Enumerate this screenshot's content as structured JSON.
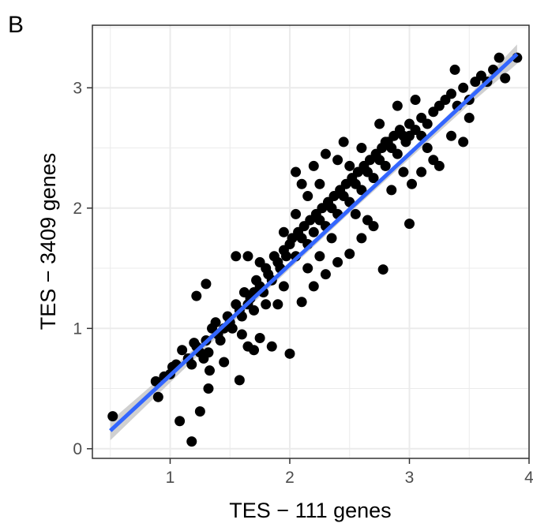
{
  "panel_label": "B",
  "chart_data": {
    "type": "scatter",
    "xlabel": "TES − 111 genes",
    "ylabel": "TES − 3409 genes",
    "xlim": [
      0.35,
      4.0
    ],
    "ylim": [
      -0.08,
      3.52
    ],
    "x_ticks": [
      1,
      2,
      3,
      4
    ],
    "y_ticks": [
      0,
      1,
      2,
      3
    ],
    "x_tick_labels": [
      "1",
      "2",
      "3",
      "4"
    ],
    "y_tick_labels": [
      "0",
      "1",
      "2",
      "3"
    ],
    "grid": true,
    "legend": "none",
    "colors": {
      "points": "#000000",
      "fit_line": "#3366ff",
      "confidence_band": "#c8c8c8",
      "grid": "#ebebeb",
      "frame": "#333333"
    },
    "fit_line": {
      "x": [
        0.5,
        3.9
      ],
      "y": [
        0.15,
        3.28
      ]
    },
    "confidence_band": {
      "x": [
        0.5,
        1.5,
        2.5,
        3.5,
        3.9
      ],
      "lower": [
        0.07,
        1.03,
        1.96,
        2.86,
        3.2
      ],
      "upper": [
        0.23,
        1.09,
        2.0,
        2.94,
        3.36
      ]
    },
    "points": [
      [
        0.52,
        0.27
      ],
      [
        0.88,
        0.56
      ],
      [
        0.9,
        0.43
      ],
      [
        0.95,
        0.6
      ],
      [
        1.0,
        0.62
      ],
      [
        1.02,
        0.68
      ],
      [
        1.05,
        0.7
      ],
      [
        1.1,
        0.82
      ],
      [
        1.15,
        0.75
      ],
      [
        1.18,
        0.7
      ],
      [
        1.2,
        0.88
      ],
      [
        1.22,
        0.85
      ],
      [
        1.25,
        0.8
      ],
      [
        1.28,
        0.75
      ],
      [
        1.3,
        0.9
      ],
      [
        1.32,
        0.8
      ],
      [
        1.33,
        0.65
      ],
      [
        1.35,
        1.0
      ],
      [
        1.38,
        1.05
      ],
      [
        1.4,
        0.95
      ],
      [
        1.42,
        0.9
      ],
      [
        1.45,
        1.0
      ],
      [
        1.48,
        1.1
      ],
      [
        1.5,
        1.05
      ],
      [
        1.52,
        1.0
      ],
      [
        1.55,
        1.2
      ],
      [
        1.58,
        1.15
      ],
      [
        1.6,
        1.1
      ],
      [
        1.62,
        1.3
      ],
      [
        1.65,
        1.2
      ],
      [
        1.67,
        1.25
      ],
      [
        1.7,
        1.3
      ],
      [
        1.72,
        1.4
      ],
      [
        1.75,
        1.35
      ],
      [
        1.78,
        1.3
      ],
      [
        1.8,
        1.5
      ],
      [
        1.82,
        1.45
      ],
      [
        1.85,
        1.4
      ],
      [
        1.87,
        1.6
      ],
      [
        1.9,
        1.55
      ],
      [
        1.92,
        1.5
      ],
      [
        1.95,
        1.65
      ],
      [
        1.97,
        1.6
      ],
      [
        2.0,
        1.7
      ],
      [
        2.02,
        1.75
      ],
      [
        2.05,
        1.6
      ],
      [
        2.07,
        1.8
      ],
      [
        2.1,
        1.75
      ],
      [
        2.12,
        1.85
      ],
      [
        2.15,
        1.7
      ],
      [
        2.17,
        1.9
      ],
      [
        2.2,
        1.8
      ],
      [
        2.22,
        1.95
      ],
      [
        2.25,
        1.9
      ],
      [
        2.27,
        2.0
      ],
      [
        2.3,
        1.85
      ],
      [
        2.32,
        2.05
      ],
      [
        2.35,
        2.0
      ],
      [
        2.37,
        2.1
      ],
      [
        2.4,
        1.95
      ],
      [
        2.42,
        2.15
      ],
      [
        2.45,
        2.1
      ],
      [
        2.47,
        2.2
      ],
      [
        2.5,
        2.05
      ],
      [
        2.52,
        2.25
      ],
      [
        2.55,
        2.2
      ],
      [
        2.57,
        2.3
      ],
      [
        2.6,
        2.15
      ],
      [
        2.62,
        2.35
      ],
      [
        2.65,
        2.3
      ],
      [
        2.67,
        2.4
      ],
      [
        2.7,
        2.25
      ],
      [
        2.72,
        2.45
      ],
      [
        2.75,
        2.4
      ],
      [
        2.77,
        2.5
      ],
      [
        2.8,
        2.35
      ],
      [
        2.82,
        2.55
      ],
      [
        2.85,
        2.5
      ],
      [
        2.87,
        2.6
      ],
      [
        2.9,
        2.45
      ],
      [
        2.92,
        2.65
      ],
      [
        2.95,
        2.6
      ],
      [
        2.97,
        2.55
      ],
      [
        3.0,
        2.7
      ],
      [
        3.05,
        2.65
      ],
      [
        3.1,
        2.75
      ],
      [
        3.15,
        2.7
      ],
      [
        3.2,
        2.8
      ],
      [
        3.25,
        2.85
      ],
      [
        3.3,
        2.9
      ],
      [
        3.35,
        2.95
      ],
      [
        3.4,
        2.85
      ],
      [
        3.45,
        3.0
      ],
      [
        3.5,
        2.9
      ],
      [
        3.55,
        3.05
      ],
      [
        3.6,
        3.1
      ],
      [
        3.65,
        3.05
      ],
      [
        3.7,
        3.15
      ],
      [
        3.75,
        3.25
      ],
      [
        3.8,
        3.08
      ],
      [
        3.9,
        3.25
      ],
      [
        3.38,
        3.15
      ],
      [
        3.05,
        2.9
      ],
      [
        1.08,
        0.23
      ],
      [
        1.18,
        0.06
      ],
      [
        1.25,
        0.31
      ],
      [
        1.32,
        0.5
      ],
      [
        1.3,
        1.37
      ],
      [
        1.22,
        1.27
      ],
      [
        1.58,
        0.57
      ],
      [
        2.0,
        0.79
      ],
      [
        1.55,
        1.6
      ],
      [
        1.6,
        0.95
      ],
      [
        1.75,
        0.92
      ],
      [
        1.85,
        0.85
      ],
      [
        1.9,
        1.2
      ],
      [
        1.95,
        1.35
      ],
      [
        2.1,
        1.22
      ],
      [
        2.2,
        1.35
      ],
      [
        2.3,
        1.45
      ],
      [
        2.4,
        1.55
      ],
      [
        2.5,
        1.62
      ],
      [
        2.6,
        1.75
      ],
      [
        2.7,
        1.85
      ],
      [
        2.78,
        1.49
      ],
      [
        3.0,
        1.87
      ],
      [
        3.02,
        2.2
      ],
      [
        3.1,
        2.3
      ],
      [
        3.2,
        2.4
      ],
      [
        2.05,
        2.3
      ],
      [
        2.1,
        2.2
      ],
      [
        2.2,
        2.35
      ],
      [
        2.3,
        2.45
      ],
      [
        2.45,
        2.55
      ],
      [
        2.75,
        2.7
      ],
      [
        2.9,
        2.85
      ],
      [
        3.35,
        2.6
      ],
      [
        3.45,
        2.55
      ],
      [
        3.5,
        2.75
      ],
      [
        3.25,
        2.35
      ],
      [
        1.65,
        1.6
      ],
      [
        1.7,
        1.15
      ],
      [
        1.8,
        1.2
      ],
      [
        1.45,
        0.72
      ],
      [
        1.65,
        0.85
      ],
      [
        1.7,
        0.82
      ],
      [
        2.15,
        1.5
      ],
      [
        2.25,
        1.6
      ],
      [
        2.35,
        1.75
      ],
      [
        2.55,
        1.95
      ],
      [
        2.65,
        1.9
      ],
      [
        2.85,
        2.15
      ],
      [
        2.95,
        2.3
      ],
      [
        3.15,
        2.5
      ],
      [
        2.5,
        2.35
      ],
      [
        2.6,
        2.5
      ],
      [
        2.4,
        2.4
      ],
      [
        1.75,
        1.55
      ],
      [
        1.95,
        1.8
      ],
      [
        2.05,
        1.95
      ],
      [
        2.15,
        2.1
      ],
      [
        2.25,
        2.2
      ],
      [
        2.8,
        2.55
      ],
      [
        3.0,
        2.6
      ],
      [
        3.1,
        2.6
      ]
    ]
  }
}
